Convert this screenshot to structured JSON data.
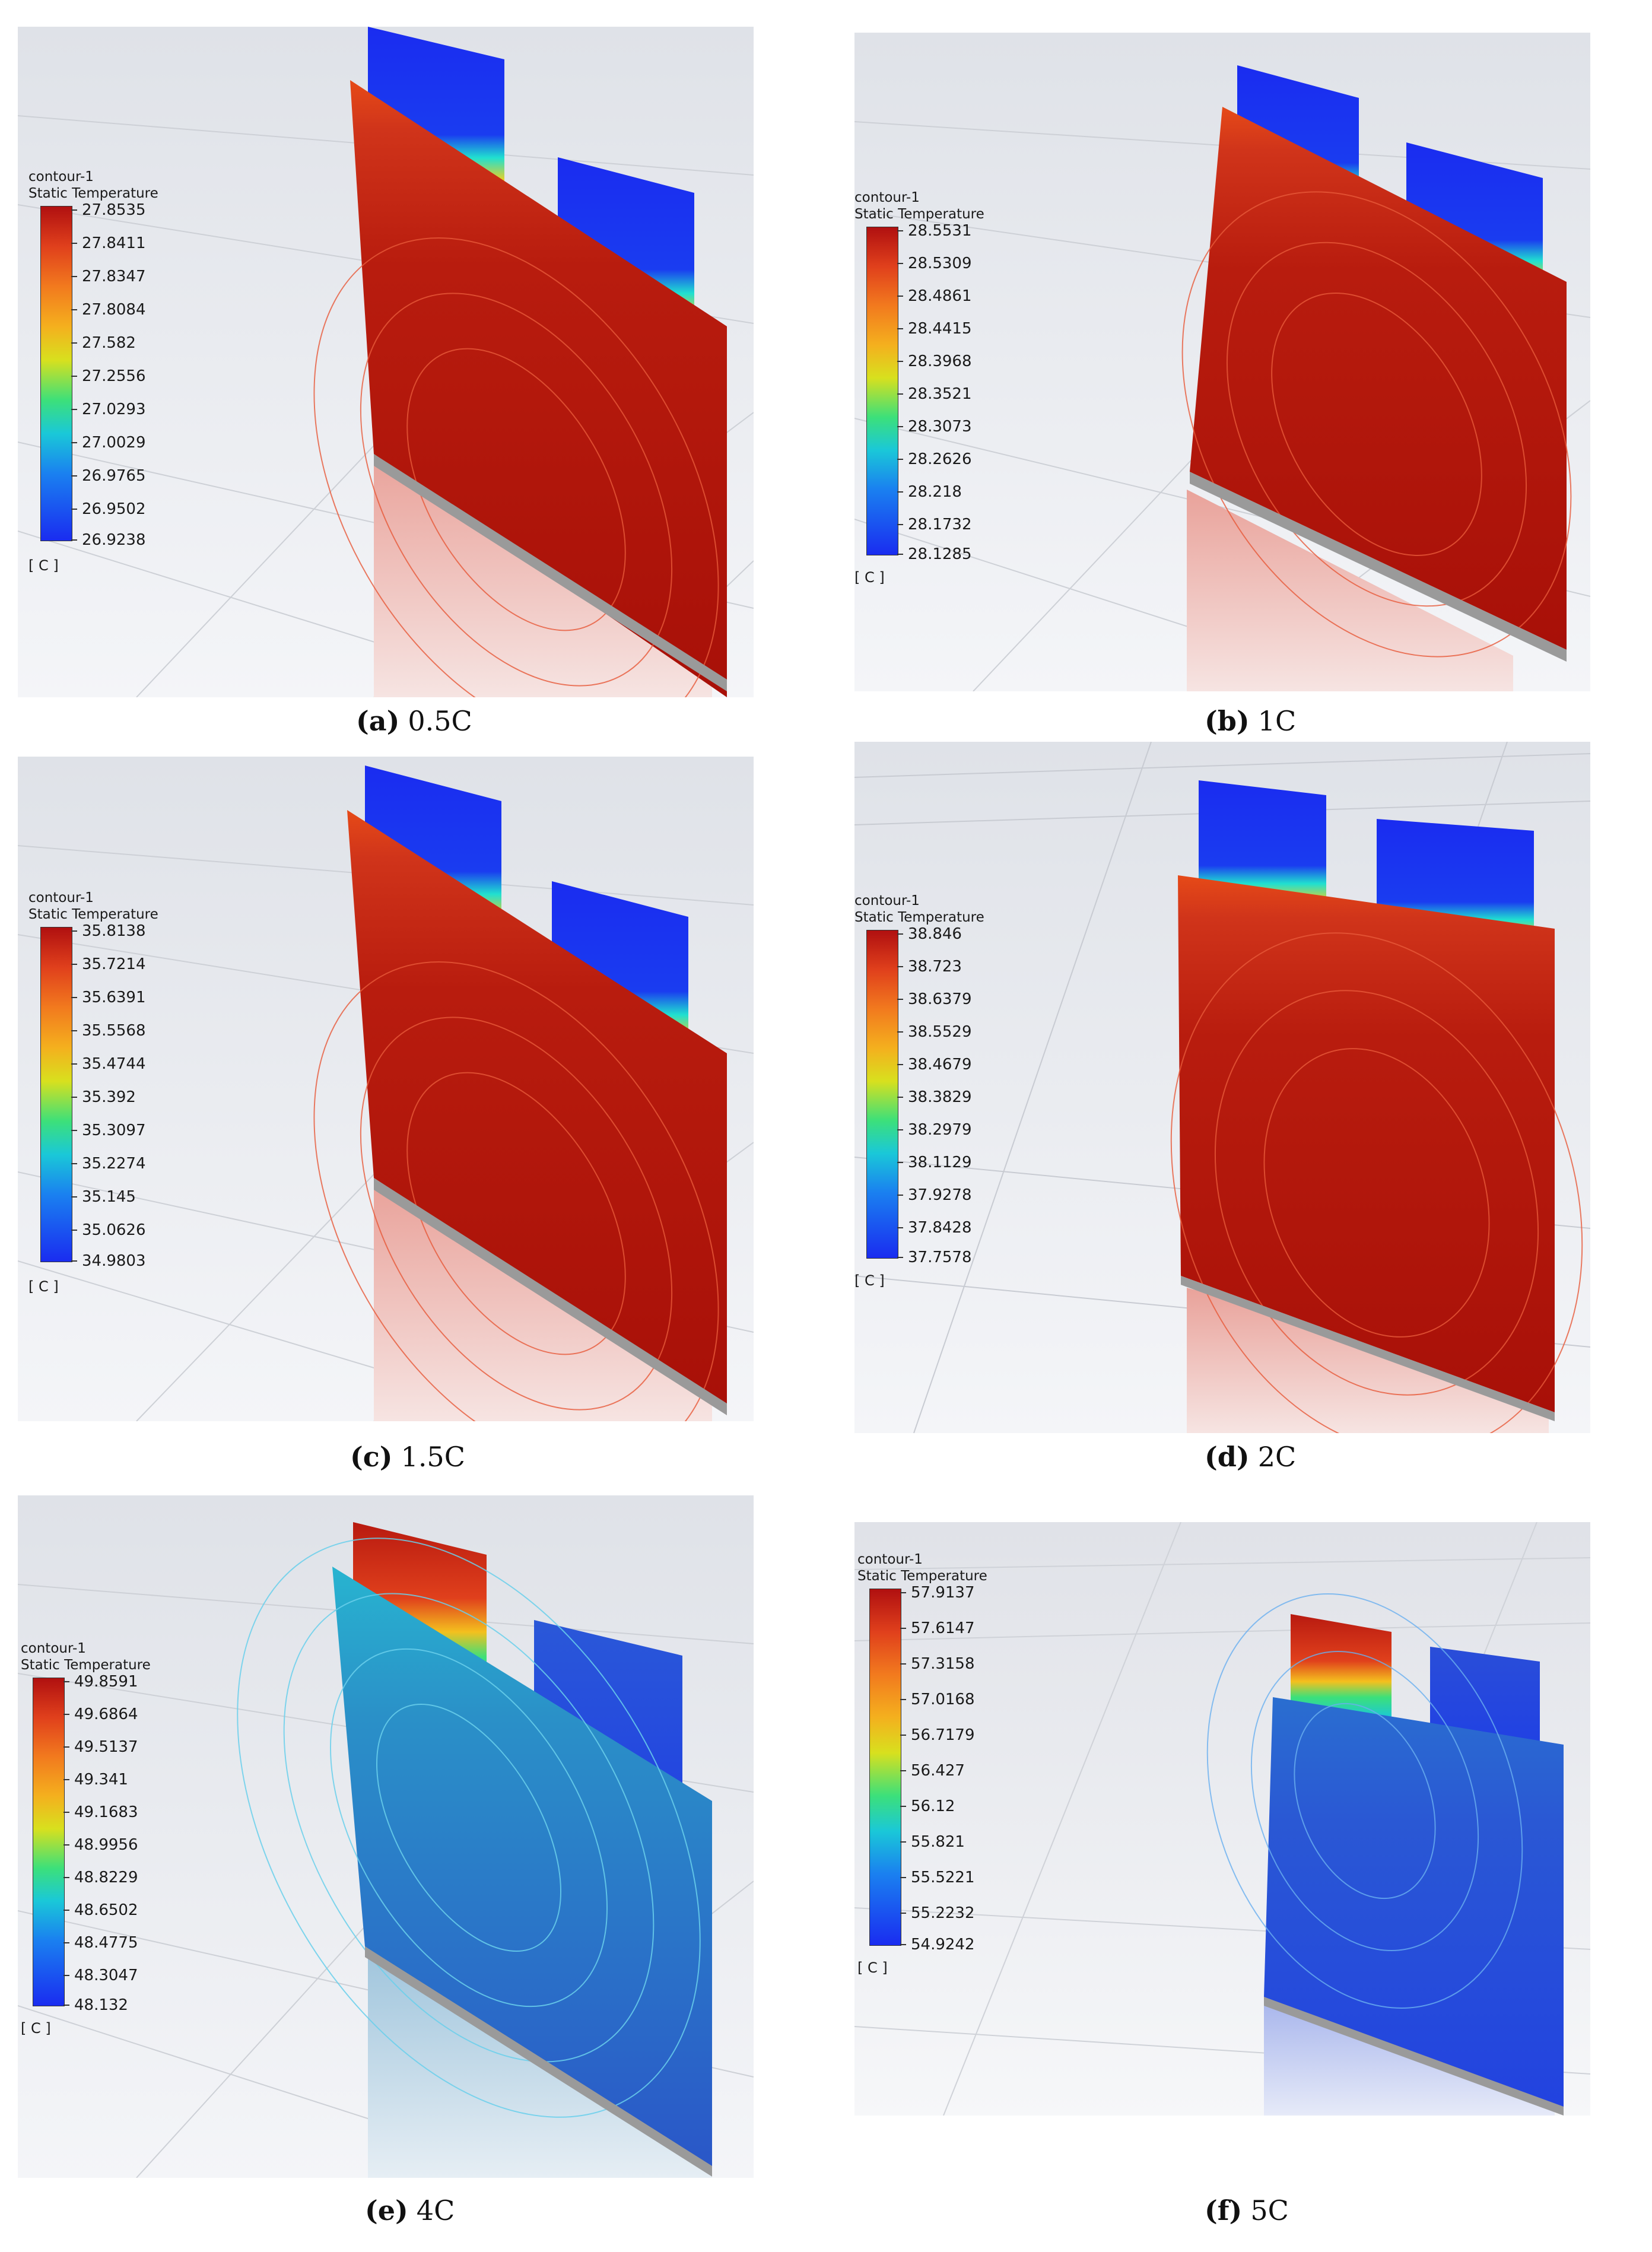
{
  "panels": [
    {
      "id": "a",
      "legend": {
        "title": "contour-1",
        "variable": "Static Temperature",
        "unit": "[ C ]",
        "values": [
          "27.8535",
          "27.8411",
          "27.8347",
          "27.8084",
          "27.582",
          "27.2556",
          "27.0293",
          "27.0029",
          "26.9765",
          "26.9502",
          "26.9238"
        ]
      },
      "caption": {
        "label": "(a)",
        "rate": "0.5C"
      },
      "hot_region": "cell body",
      "colors": {
        "body": "#b51a0c",
        "tabs": "#1a2cf0",
        "palette": "red-body-blue-tabs"
      }
    },
    {
      "id": "b",
      "legend": {
        "title": "contour-1",
        "variable": "Static Temperature",
        "unit": "[ C ]",
        "values": [
          "28.5531",
          "28.5309",
          "28.4861",
          "28.4415",
          "28.3968",
          "28.3521",
          "28.3073",
          "28.2626",
          "28.218",
          "28.1732",
          "28.1285"
        ]
      },
      "caption": {
        "label": "(b)",
        "rate": "1C"
      },
      "hot_region": "cell body",
      "colors": {
        "body": "#b51a0c",
        "tabs": "#1a2cf0",
        "palette": "red-body-blue-tabs"
      }
    },
    {
      "id": "c",
      "legend": {
        "title": "contour-1",
        "variable": "Static Temperature",
        "unit": "[ C ]",
        "values": [
          "35.8138",
          "35.7214",
          "35.6391",
          "35.5568",
          "35.4744",
          "35.392",
          "35.3097",
          "35.2274",
          "35.145",
          "35.0626",
          "34.9803"
        ]
      },
      "caption": {
        "label": "(c)",
        "rate": "1.5C"
      },
      "hot_region": "cell body",
      "colors": {
        "body": "#b51a0c",
        "tabs": "#1a2cf0",
        "palette": "red-body-blue-tabs"
      }
    },
    {
      "id": "d",
      "legend": {
        "title": "contour-1",
        "variable": "Static Temperature",
        "unit": "[ C ]",
        "values": [
          "38.846",
          "38.723",
          "38.6379",
          "38.5529",
          "38.4679",
          "38.3829",
          "38.2979",
          "38.1129",
          "37.9278",
          "37.8428",
          "37.7578"
        ]
      },
      "caption": {
        "label": "(d)",
        "rate": "2C"
      },
      "hot_region": "cell body",
      "colors": {
        "body": "#b51a0c",
        "tabs": "#1a2cf0",
        "palette": "red-body-blue-tabs"
      }
    },
    {
      "id": "e",
      "legend": {
        "title": "contour-1",
        "variable": "Static Temperature",
        "unit": "[ C ]",
        "values": [
          "49.8591",
          "49.6864",
          "49.5137",
          "49.341",
          "49.1683",
          "48.9956",
          "48.8229",
          "48.6502",
          "48.4775",
          "48.3047",
          "48.132"
        ]
      },
      "caption": {
        "label": "(e)",
        "rate": "4C"
      },
      "hot_region": "positive tab",
      "colors": {
        "body": "#2a64c8",
        "tabs": "#c81a10",
        "palette": "blue-body-red-tab"
      }
    },
    {
      "id": "f",
      "legend": {
        "title": "contour-1",
        "variable": "Static Temperature",
        "unit": "[ C ]",
        "values": [
          "57.9137",
          "57.6147",
          "57.3158",
          "57.0168",
          "56.7179",
          "56.427",
          "56.12",
          "55.821",
          "55.5221",
          "55.2232",
          "54.9242"
        ]
      },
      "caption": {
        "label": "(f)",
        "rate": "5C"
      },
      "hot_region": "positive tab",
      "colors": {
        "body": "#2348d8",
        "tabs": "#c81a10",
        "palette": "blue-body-red-tab"
      }
    }
  ]
}
